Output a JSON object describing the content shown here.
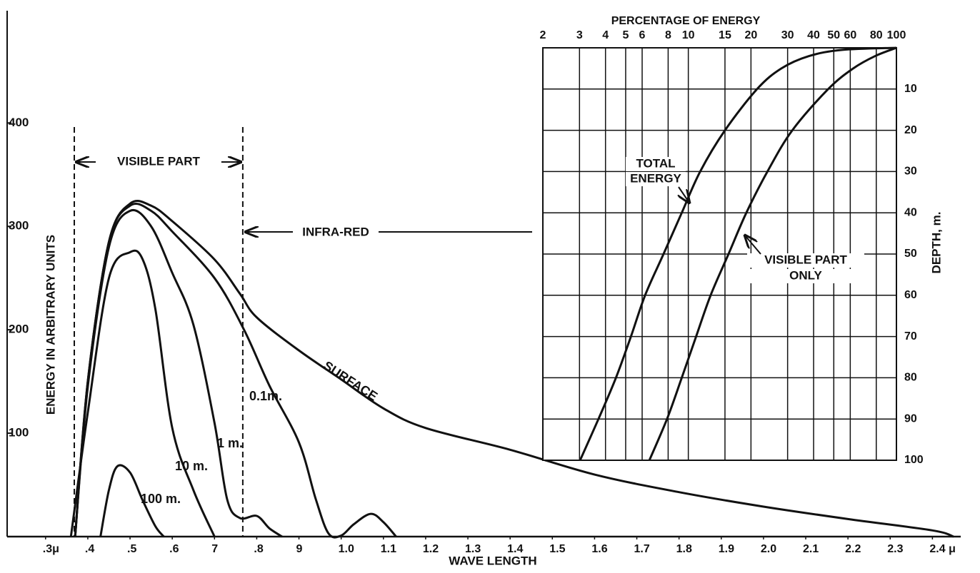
{
  "chart_data": [
    {
      "type": "line",
      "xlabel": "WAVE LENGTH",
      "ylabel": "ENERGY IN ARBITRARY UNITS",
      "xlim": [
        0.209,
        2.467
      ],
      "ylim": [
        0,
        512
      ],
      "xticks": [
        {
          "value": 0.3,
          "label": ".3μ"
        },
        {
          "value": 0.4,
          "label": ".4"
        },
        {
          "value": 0.5,
          "label": ".5"
        },
        {
          "value": 0.6,
          "label": ".6"
        },
        {
          "value": 0.7,
          "label": "7"
        },
        {
          "value": 0.8,
          "label": ".8"
        },
        {
          "value": 0.9,
          "label": "9"
        },
        {
          "value": 1.0,
          "label": "1.0"
        },
        1.1,
        1.2,
        1.3,
        1.4,
        1.5,
        1.6,
        1.7,
        1.8,
        1.9,
        {
          "value": 2.0,
          "label": "2.0"
        },
        2.1,
        2.2,
        2.3,
        {
          "value": 2.4,
          "label": "2.4  μ"
        }
      ],
      "yticks": [
        100,
        200,
        300,
        400
      ],
      "visible_range": [
        0.368,
        0.767
      ],
      "visible_label": "VISIBLE PART",
      "infrared_label": "INFRA-RED",
      "series": [
        {
          "name": "SURFACE",
          "color": "#111",
          "x": [
            0.37,
            0.4,
            0.45,
            0.5,
            0.55,
            0.6,
            0.7,
            0.76,
            0.8,
            0.9,
            1.0,
            1.1,
            1.2,
            1.4,
            1.6,
            1.8,
            2.0,
            2.2,
            2.4,
            2.45
          ],
          "values": [
            0,
            150,
            285,
            322,
            320,
            305,
            268,
            235,
            212,
            180,
            152,
            124,
            105,
            84,
            60,
            43,
            29,
            17,
            6,
            0
          ]
        },
        {
          "name": "0.1m.",
          "color": "#111",
          "x": [
            0.37,
            0.4,
            0.45,
            0.5,
            0.55,
            0.6,
            0.7,
            0.77,
            0.83,
            0.9,
            0.94,
            0.97,
            1.0,
            1.03,
            1.07,
            1.1,
            1.13
          ],
          "values": [
            0,
            150,
            285,
            320,
            315,
            295,
            250,
            200,
            146,
            91,
            36,
            3,
            1,
            12,
            22,
            14,
            0
          ]
        },
        {
          "name": "1 m.",
          "color": "#111",
          "x": [
            0.37,
            0.4,
            0.45,
            0.5,
            0.55,
            0.6,
            0.65,
            0.7,
            0.73,
            0.76,
            0.8,
            0.83,
            0.86
          ],
          "values": [
            0,
            145,
            280,
            315,
            300,
            255,
            205,
            110,
            36,
            18,
            20,
            8,
            0
          ]
        },
        {
          "name": "10 m.",
          "color": "#111",
          "x": [
            0.36,
            0.4,
            0.45,
            0.5,
            0.53,
            0.56,
            0.6,
            0.65,
            0.7
          ],
          "values": [
            0,
            120,
            250,
            275,
            268,
            220,
            105,
            45,
            0
          ]
        },
        {
          "name": "100 m.",
          "color": "#111",
          "x": [
            0.43,
            0.45,
            0.47,
            0.5,
            0.53,
            0.56,
            0.58
          ],
          "values": [
            0,
            45,
            68,
            62,
            35,
            10,
            0
          ]
        }
      ]
    },
    {
      "type": "line",
      "title": "PERCENTAGE OF ENERGY",
      "ylabel": "DEPTH, m.",
      "xscale": "log",
      "yinverted": true,
      "grid": true,
      "xlim": [
        2,
        100
      ],
      "ylim": [
        0,
        100
      ],
      "xticks": [
        2,
        3,
        4,
        5,
        6,
        8,
        10,
        15,
        20,
        30,
        40,
        50,
        60,
        80,
        100
      ],
      "yticks": [
        10,
        20,
        30,
        40,
        50,
        60,
        70,
        80,
        90,
        100
      ],
      "series": [
        {
          "name": [
            "TOTAL",
            "ENERGY"
          ],
          "color": "#111",
          "x": [
            3.02,
            3.7,
            4.49,
            5.3,
            6.2,
            7.6,
            9.3,
            11.4,
            15,
            21.4,
            28,
            38,
            55,
            100
          ],
          "values": [
            100,
            90,
            80,
            70,
            60,
            50,
            40,
            30,
            20,
            10,
            5,
            2,
            0.5,
            0
          ]
        },
        {
          "name": [
            "VISIBLE PART",
            "ONLY"
          ],
          "color": "#111",
          "x": [
            6.5,
            7.9,
            9.3,
            10.9,
            12.8,
            15.6,
            19,
            24,
            31.6,
            47,
            62,
            79,
            100
          ],
          "values": [
            100,
            90,
            80,
            70,
            60,
            50,
            40,
            30,
            20,
            10,
            5,
            2,
            0
          ]
        }
      ]
    }
  ]
}
